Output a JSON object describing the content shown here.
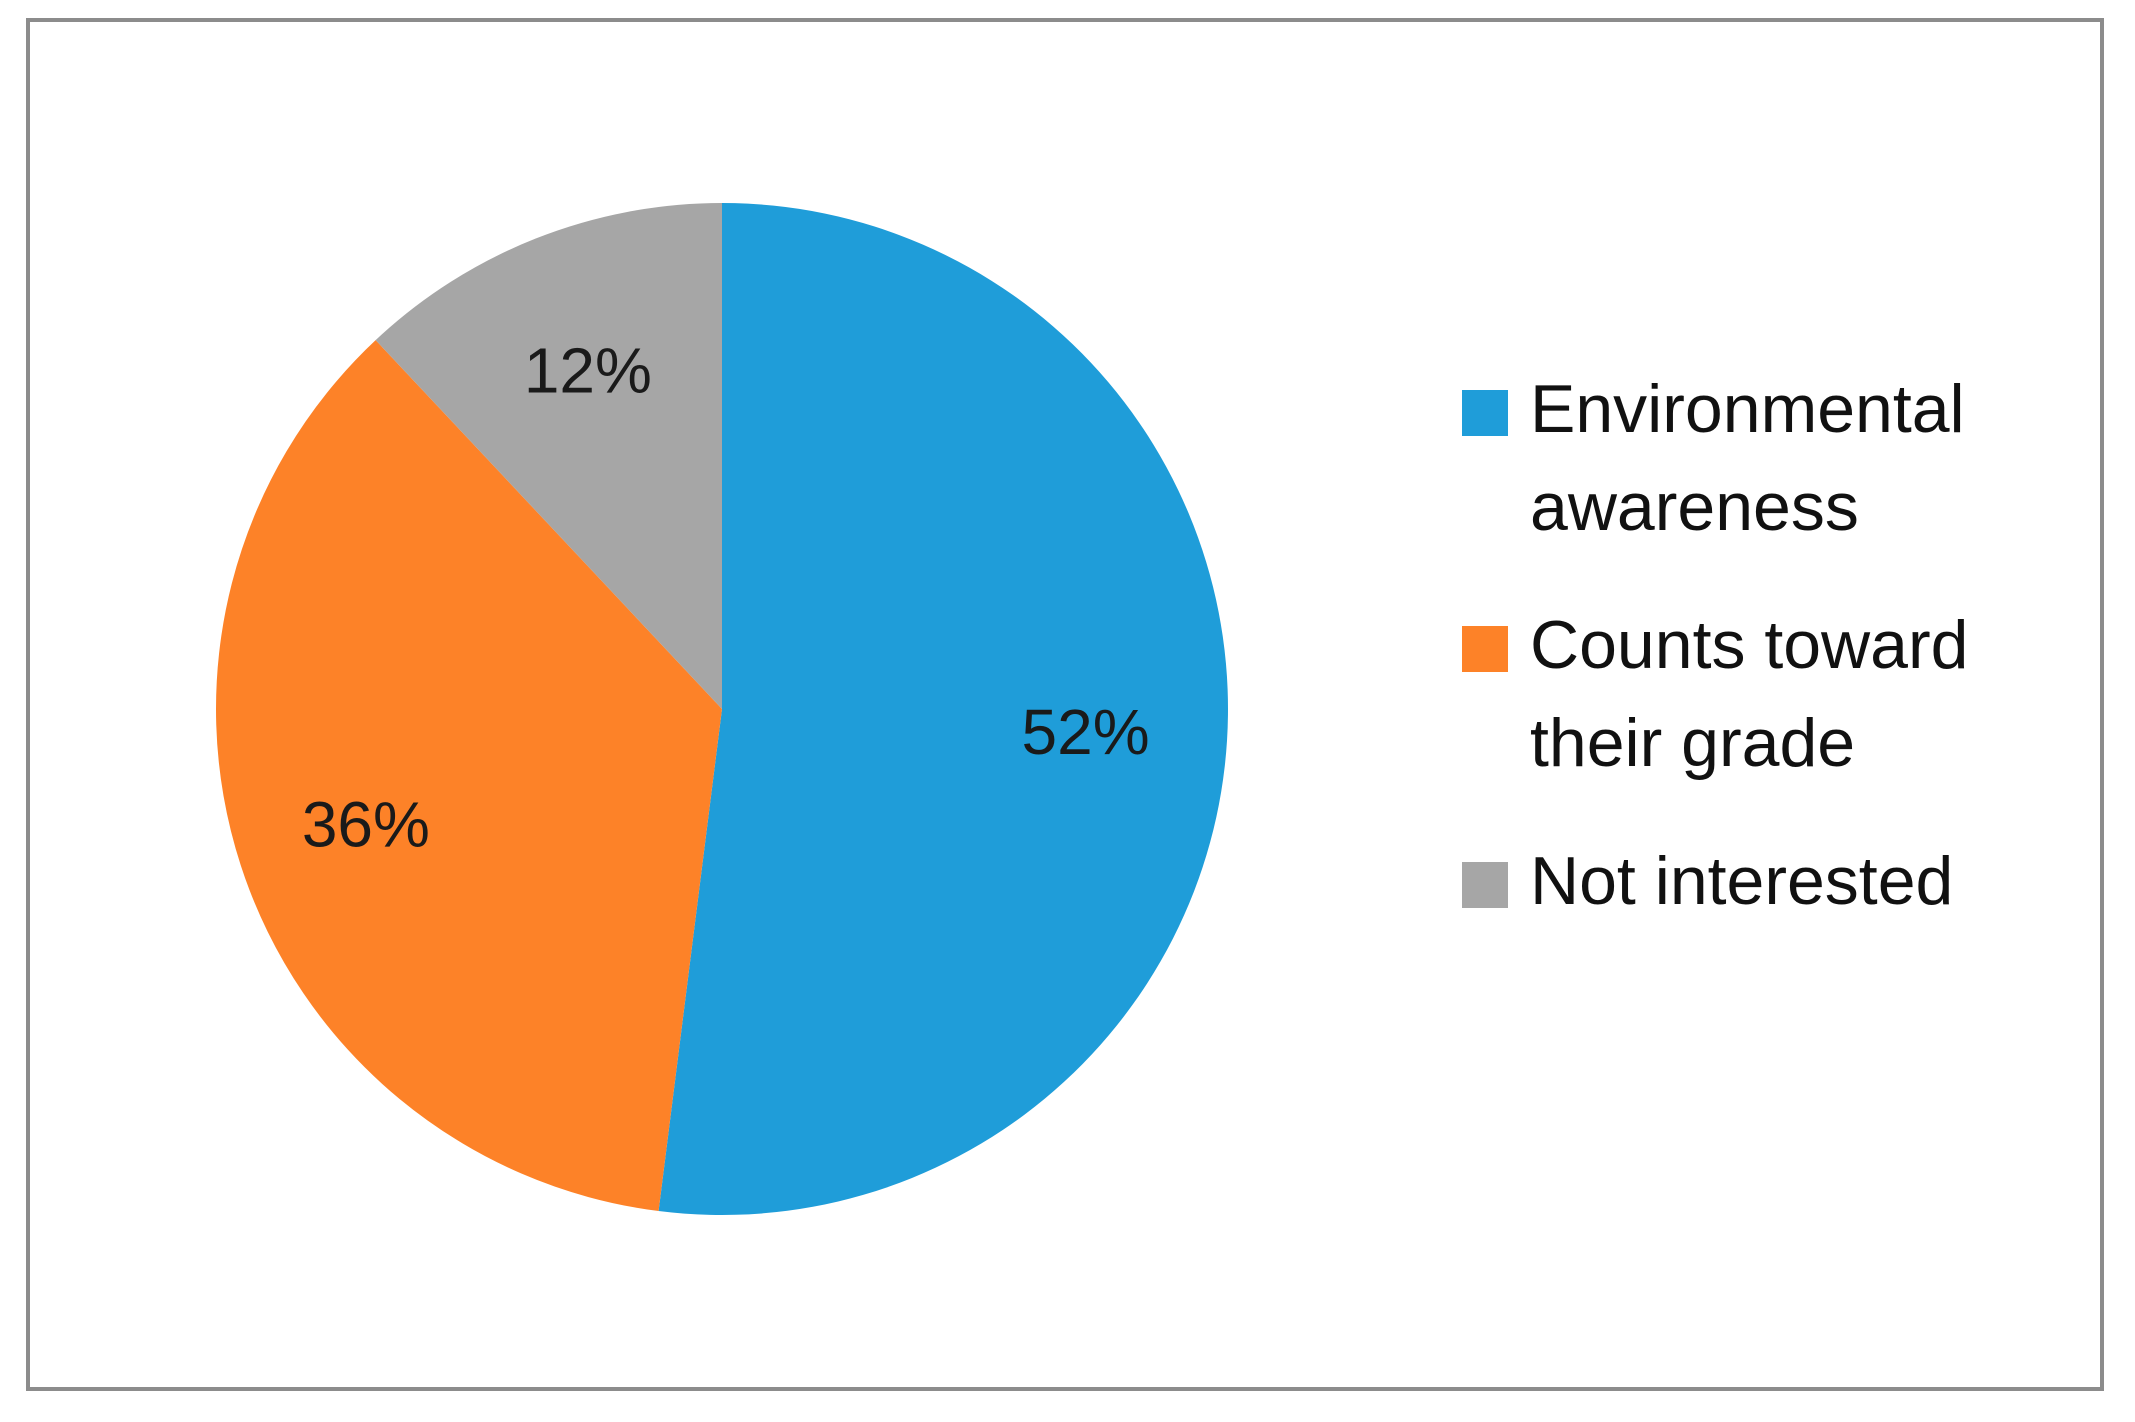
{
  "chart_data": {
    "type": "pie",
    "title": "",
    "legend_position": "right",
    "slices": [
      {
        "label": "Environmental awareness",
        "value": 52,
        "value_label": "52%",
        "color": "#1f9dd9"
      },
      {
        "label": "Counts toward their grade",
        "value": 36,
        "value_label": "36%",
        "color": "#fd8228"
      },
      {
        "label": "Not interested",
        "value": 12,
        "value_label": "12%",
        "color": "#a6a6a6"
      }
    ],
    "start_angle": "12 o'clock",
    "direction": "clockwise"
  },
  "legend": {
    "items": [
      {
        "label_line1": "Environmental",
        "label_line2": "awareness",
        "color": "#1f9dd9"
      },
      {
        "label_line1": "Counts toward",
        "label_line2": "their grade",
        "color": "#fd8228"
      },
      {
        "label_line1": "Not interested",
        "label_line2": "",
        "color": "#a6a6a6"
      }
    ]
  }
}
